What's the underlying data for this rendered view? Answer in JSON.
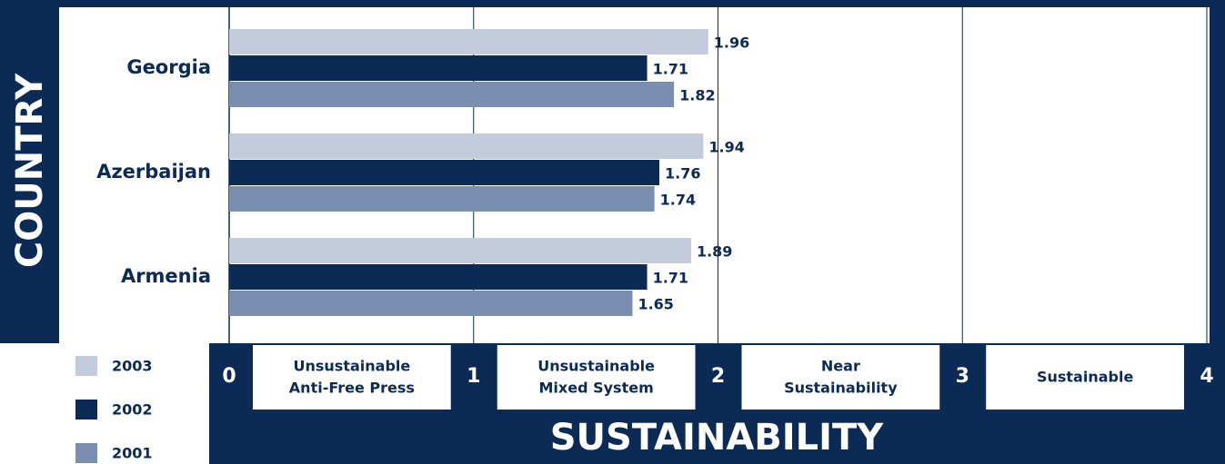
{
  "chart_data": {
    "type": "barh",
    "y_axis_label": "COUNTRY",
    "x_axis_label": "SUSTAINABILITY",
    "categories": [
      "Georgia",
      "Azerbaijan",
      "Armenia"
    ],
    "series": [
      {
        "name": "2003",
        "color": "#c3cbdc",
        "values": [
          1.96,
          1.94,
          1.89
        ]
      },
      {
        "name": "2002",
        "color": "#0b2a55",
        "values": [
          1.71,
          1.76,
          1.71
        ]
      },
      {
        "name": "2001",
        "color": "#7a8fb0",
        "values": [
          1.82,
          1.74,
          1.65
        ]
      }
    ],
    "xlim": [
      0,
      4
    ],
    "xticks": [
      0,
      1,
      2,
      3,
      4
    ],
    "grid": true,
    "zones": [
      [
        "Unsustainable",
        "Anti-Free Press"
      ],
      [
        "Unsustainable",
        "Mixed System"
      ],
      [
        "Near",
        "Sustainability"
      ],
      [
        "Sustainable"
      ]
    ]
  }
}
